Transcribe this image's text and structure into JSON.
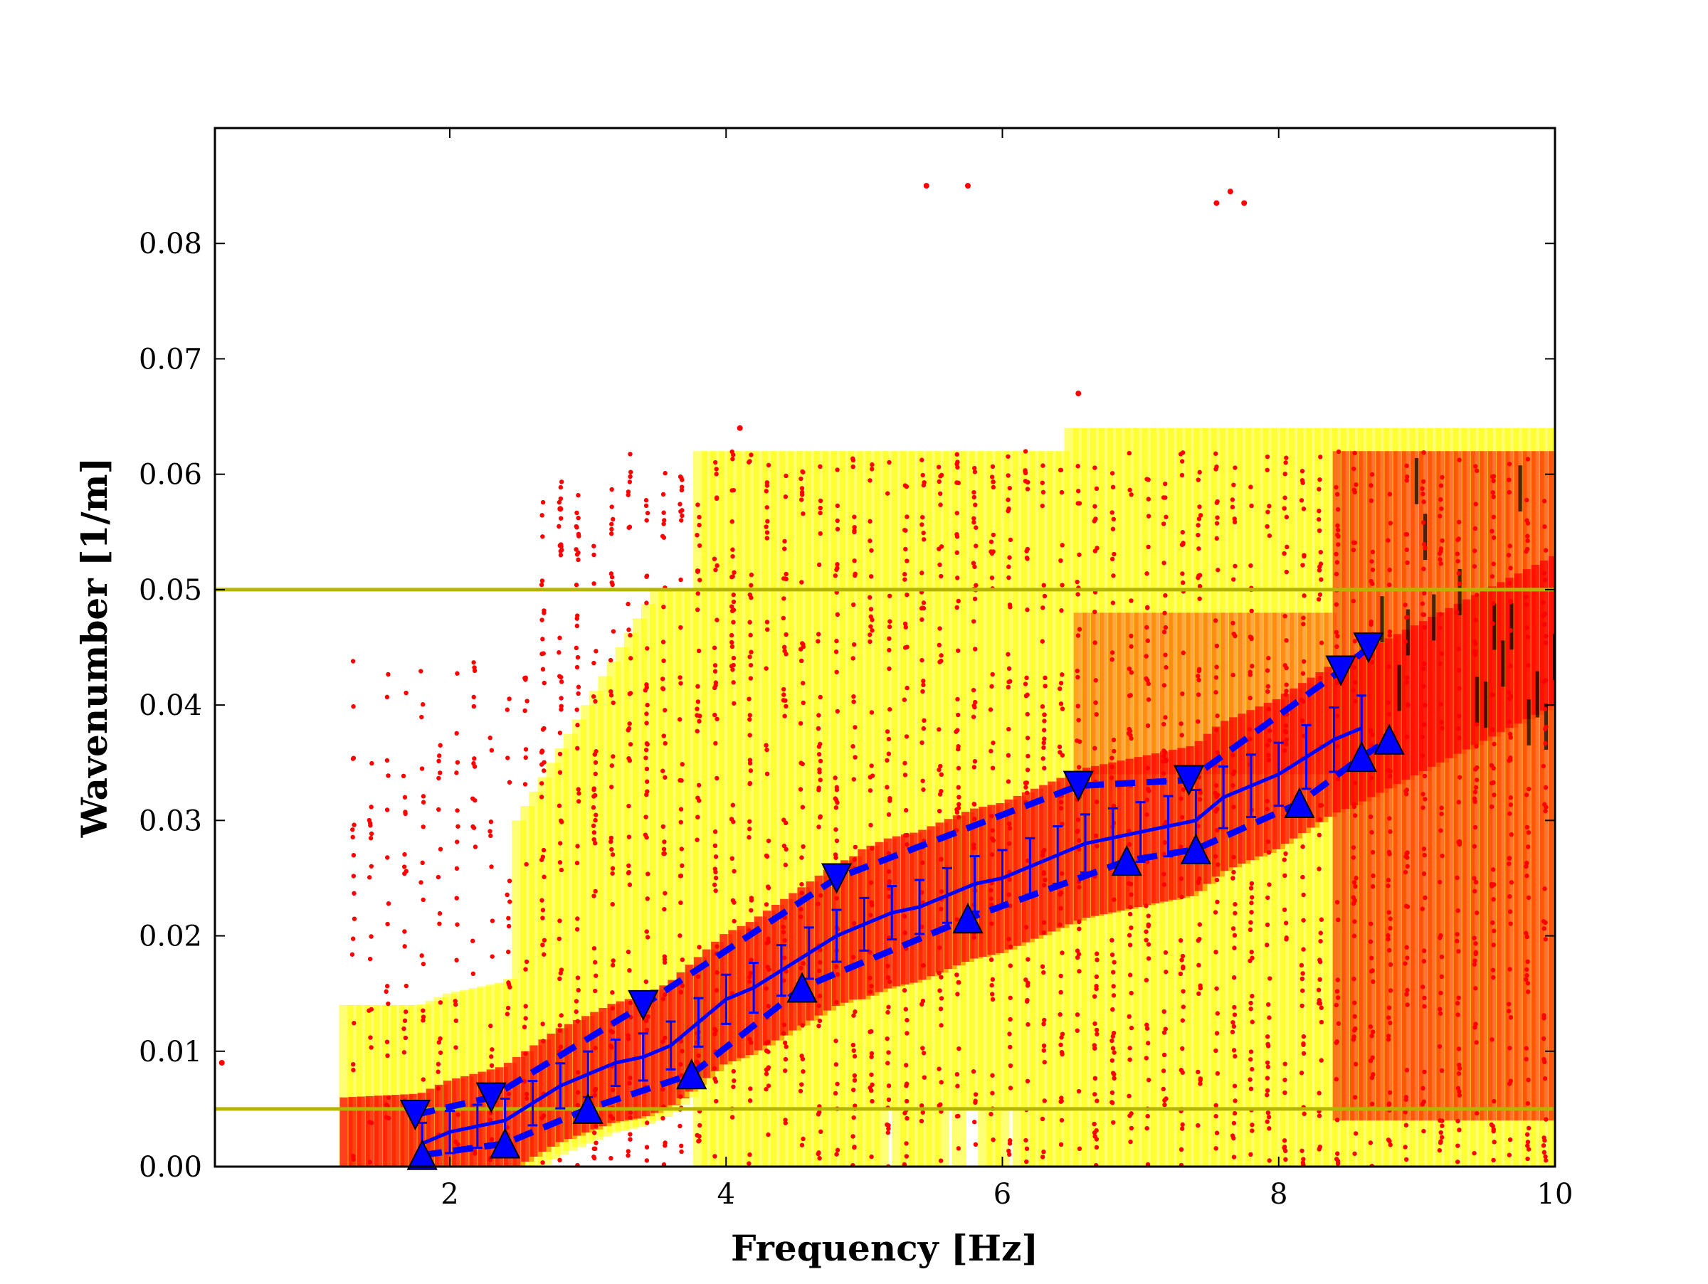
{
  "chart_data": {
    "type": "scatter",
    "title": "",
    "xlabel": "Frequency [Hz]",
    "ylabel": "Wavenumber [1/m]",
    "xlim": [
      0.3,
      10
    ],
    "ylim": [
      0,
      0.09
    ],
    "xticks": [
      2,
      4,
      6,
      8,
      10
    ],
    "yticks": [
      0.0,
      0.01,
      0.02,
      0.03,
      0.04,
      0.05,
      0.06,
      0.07,
      0.08
    ],
    "xtick_labels": [
      "2",
      "4",
      "6",
      "8",
      "10"
    ],
    "ytick_labels": [
      "0.00",
      "0.01",
      "0.02",
      "0.03",
      "0.04",
      "0.05",
      "0.06",
      "0.07",
      "0.08"
    ],
    "grid": false,
    "legend": "none",
    "colors": {
      "density_low": "#ffff00",
      "density_mid": "#ff0000",
      "density_high": "#000000",
      "points": "#ff0000",
      "curve": "#0000ff",
      "limit_lines": "#b5b500"
    },
    "hlines": [
      0.005,
      0.05
    ],
    "dispersion_curve": {
      "x": [
        1.8,
        2.0,
        2.2,
        2.4,
        2.6,
        2.8,
        3.0,
        3.2,
        3.4,
        3.6,
        3.8,
        4.0,
        4.2,
        4.4,
        4.6,
        4.8,
        5.0,
        5.2,
        5.4,
        5.6,
        5.8,
        6.0,
        6.2,
        6.4,
        6.6,
        6.8,
        7.0,
        7.2,
        7.4,
        7.6,
        7.8,
        8.0,
        8.2,
        8.4,
        8.6
      ],
      "y": [
        0.002,
        0.003,
        0.0035,
        0.004,
        0.0055,
        0.007,
        0.008,
        0.009,
        0.0095,
        0.0105,
        0.0125,
        0.0145,
        0.0155,
        0.017,
        0.0185,
        0.02,
        0.021,
        0.022,
        0.0225,
        0.0235,
        0.0245,
        0.025,
        0.026,
        0.027,
        0.028,
        0.0285,
        0.029,
        0.0295,
        0.03,
        0.032,
        0.033,
        0.034,
        0.0355,
        0.037,
        0.038
      ]
    },
    "upper_bound": {
      "x": [
        1.75,
        2.3,
        3.4,
        4.8,
        6.55,
        7.35,
        8.45,
        8.65
      ],
      "y": [
        0.0045,
        0.006,
        0.014,
        0.025,
        0.033,
        0.0335,
        0.043,
        0.045
      ]
    },
    "lower_bound": {
      "x": [
        1.8,
        2.4,
        3.0,
        3.75,
        4.55,
        5.75,
        6.9,
        7.4,
        8.15,
        8.6,
        8.8
      ],
      "y": [
        0.001,
        0.002,
        0.005,
        0.008,
        0.0155,
        0.0215,
        0.0265,
        0.0275,
        0.0315,
        0.0355,
        0.037
      ]
    },
    "outliers": [
      {
        "x": 5.45,
        "y": 0.085
      },
      {
        "x": 5.75,
        "y": 0.085
      },
      {
        "x": 7.65,
        "y": 0.0845
      },
      {
        "x": 7.55,
        "y": 0.0835
      },
      {
        "x": 7.75,
        "y": 0.0835
      },
      {
        "x": 6.55,
        "y": 0.067
      },
      {
        "x": 4.1,
        "y": 0.064
      },
      {
        "x": 2.8,
        "y": 0.057
      },
      {
        "x": 0.35,
        "y": 0.009
      }
    ]
  }
}
